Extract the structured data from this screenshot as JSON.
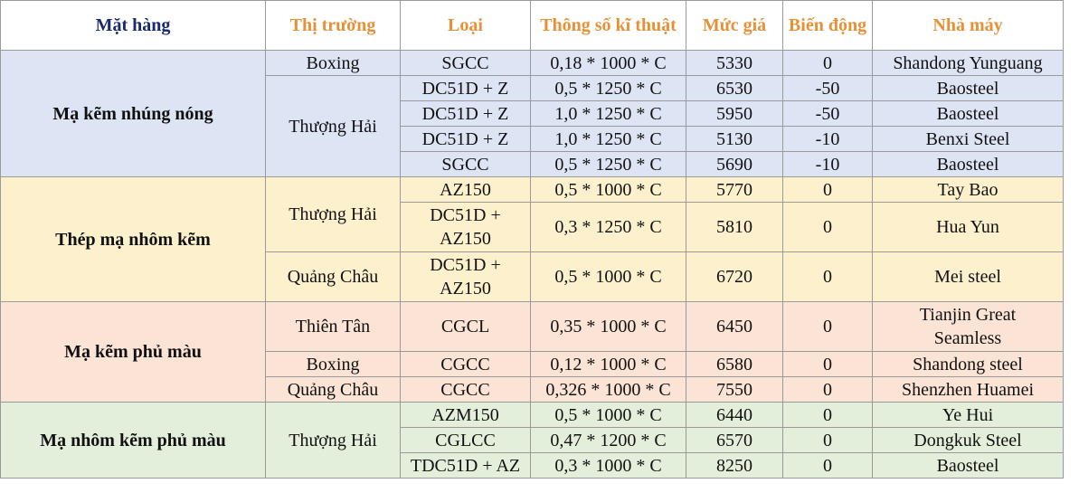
{
  "headers": [
    "Mặt hàng",
    "Thị trường",
    "Loại",
    "Thông số kĩ thuật",
    "Mức giá",
    "Biến động",
    "Nhà máy"
  ],
  "groups": [
    {
      "name": "Mạ kẽm nhúng nóng",
      "markets": [
        "Boxing",
        "Thượng Hải"
      ],
      "rows": [
        {
          "type": "SGCC",
          "spec": "0,18 * 1000 * C",
          "price": "5330",
          "change": "0",
          "factory": "Shandong Yunguang"
        },
        {
          "type": "DC51D + Z",
          "spec": "0,5 * 1250 * C",
          "price": "6530",
          "change": "-50",
          "factory": "Baosteel"
        },
        {
          "type": "DC51D + Z",
          "spec": "1,0 * 1250 * C",
          "price": "5950",
          "change": "-50",
          "factory": "Baosteel"
        },
        {
          "type": "DC51D + Z",
          "spec": "1,0 * 1250 * C",
          "price": "5130",
          "change": "-10",
          "factory": "Benxi Steel"
        },
        {
          "type": "SGCC",
          "spec": "0,5 * 1250 * C",
          "price": "5690",
          "change": "-10",
          "factory": "Baosteel"
        }
      ]
    },
    {
      "name": "Thép mạ nhôm kẽm",
      "markets": [
        "Thượng Hải",
        "Quảng Châu"
      ],
      "rows": [
        {
          "type": "AZ150",
          "spec": "0,5 * 1000 * C",
          "price": "5770",
          "change": "0",
          "factory": "Tay Bao"
        },
        {
          "type_line1": "DC51D +",
          "type_line2": "AZ150",
          "spec": "0,3 * 1250 * C",
          "price": "5810",
          "change": "0",
          "factory": "Hua Yun"
        },
        {
          "type_line1": "DC51D +",
          "type_line2": "AZ150",
          "spec": "0,5 * 1000 * C",
          "price": "6720",
          "change": "0",
          "factory": "Mei steel"
        }
      ]
    },
    {
      "name": "Mạ kẽm phủ màu",
      "markets": [
        "Thiên Tân",
        "Boxing",
        "Quảng Châu"
      ],
      "rows": [
        {
          "type": "CGCL",
          "spec": "0,35 * 1000 * C",
          "price": "6450",
          "change": "0",
          "factory_line1": "Tianjin Great",
          "factory_line2": "Seamless"
        },
        {
          "type": "CGCC",
          "spec": "0,12 * 1000 * C",
          "price": "6580",
          "change": "0",
          "factory": "Shandong steel"
        },
        {
          "type": "CGCC",
          "spec": "0,326 * 1000 * C",
          "price": "7550",
          "change": "0",
          "factory": "Shenzhen Huamei"
        }
      ]
    },
    {
      "name": "Mạ nhôm kẽm phủ màu",
      "markets": [
        "Thượng Hải"
      ],
      "rows": [
        {
          "type": "AZM150",
          "spec": "0,5 * 1000 * C",
          "price": "6440",
          "change": "0",
          "factory": "Ye Hui"
        },
        {
          "type": "CGLCC",
          "spec": "0,47 * 1200 * C",
          "price": "6570",
          "change": "0",
          "factory": "Dongkuk Steel"
        },
        {
          "type": "TDC51D + AZ",
          "spec": "0,3 * 1000 * C",
          "price": "8250",
          "change": "0",
          "factory": "Baosteel"
        }
      ]
    }
  ],
  "colors": {
    "header_item_text": "#1a2a6e",
    "header_other_text": "#e69138",
    "group1_bg": "#dde4f4",
    "group2_bg": "#fdf1cd",
    "group3_bg": "#fbe3d5",
    "group4_bg": "#e3efdb"
  }
}
